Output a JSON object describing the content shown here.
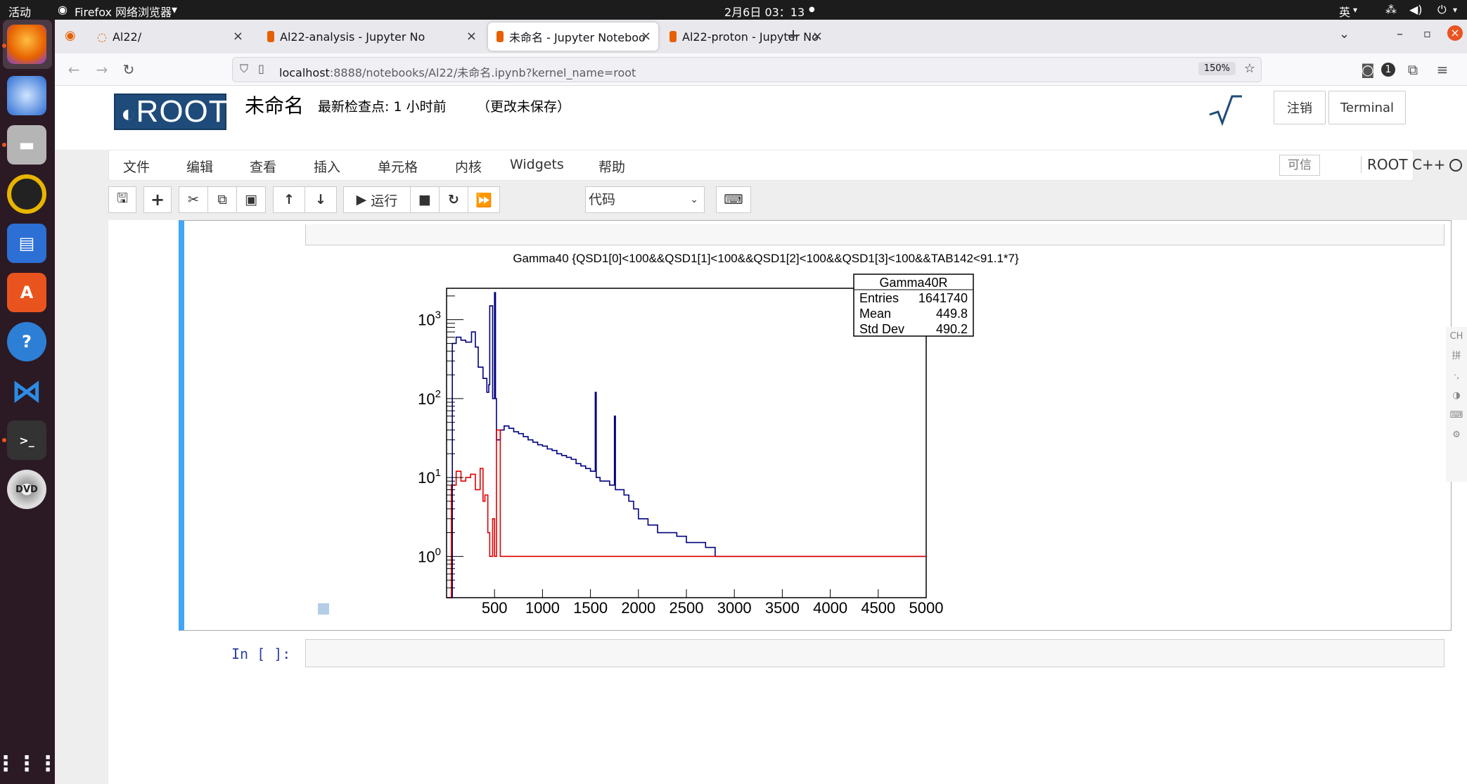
{
  "topbar": {
    "activities": "活动",
    "app_menu": "Firefox 网络浏览器",
    "clock": "2月6日  03：13",
    "input_method": "英"
  },
  "tabs": [
    {
      "label": "Al22/",
      "active": false
    },
    {
      "label": "Al22-analysis - Jupyter No",
      "active": false
    },
    {
      "label": "未命名 - Jupyter Noteboo",
      "active": true
    },
    {
      "label": "Al22-proton - Jupyter No",
      "active": false
    }
  ],
  "navbar": {
    "url_host": "localhost",
    "url_path": ":8888/notebooks/Al22/未命名.ipynb?kernel_name=root",
    "zoom": "150%"
  },
  "jupyter": {
    "logo_text": "ROOT",
    "notebook_title": "未命名",
    "checkpoint": "最新检查点: 1 小时前",
    "unsaved": "（更改未保存）",
    "logout": "注销",
    "terminal": "Terminal",
    "menus": [
      "文件",
      "编辑",
      "查看",
      "插入",
      "单元格",
      "内核",
      "Widgets",
      "帮助"
    ],
    "trusted": "可信",
    "kernel": "ROOT C++",
    "toolbar": {
      "run_label": "运行",
      "cell_type": "代码"
    },
    "next_prompt": "In [ ]:"
  },
  "chart_data": {
    "type": "histogram",
    "title": "Gamma40 {QSD1[0]<100&&QSD1[1]<100&&QSD1[2]<100&&QSD1[3]<100&&TAB142<91.1*7}",
    "xlim": [
      0,
      5000
    ],
    "ylim_log": [
      0.3,
      2500
    ],
    "y_scale": "log",
    "x_ticks": [
      "500",
      "1000",
      "1500",
      "2000",
      "2500",
      "3000",
      "3500",
      "4000",
      "4500",
      "5000"
    ],
    "y_tick_labels": [
      {
        "base": "10",
        "exp": "3",
        "value": 1000
      },
      {
        "base": "10",
        "exp": "2",
        "value": 100
      },
      {
        "base": "10",
        "exp": "1",
        "value": 10
      },
      {
        "base": "10",
        "exp": "0",
        "value": 1
      }
    ],
    "stats_box": {
      "name": "Gamma40R",
      "rows": [
        {
          "label": "Entries",
          "value": "1641740"
        },
        {
          "label": "Mean",
          "value": "449.8"
        },
        {
          "label": "Std Dev",
          "value": "490.2"
        }
      ]
    },
    "series": [
      {
        "color": "#000080",
        "points": [
          [
            0,
            0.3
          ],
          [
            60,
            500
          ],
          [
            100,
            600
          ],
          [
            150,
            550
          ],
          [
            200,
            520
          ],
          [
            260,
            700
          ],
          [
            300,
            450
          ],
          [
            330,
            250
          ],
          [
            380,
            180
          ],
          [
            420,
            120
          ],
          [
            440,
            150
          ],
          [
            450,
            1500
          ],
          [
            480,
            100
          ],
          [
            500,
            2200
          ],
          [
            510,
            100
          ],
          [
            520,
            30
          ],
          [
            560,
            40
          ],
          [
            600,
            45
          ],
          [
            650,
            42
          ],
          [
            700,
            38
          ],
          [
            750,
            36
          ],
          [
            800,
            33
          ],
          [
            850,
            30
          ],
          [
            900,
            28
          ],
          [
            950,
            26
          ],
          [
            1000,
            25
          ],
          [
            1050,
            23
          ],
          [
            1100,
            22
          ],
          [
            1150,
            20
          ],
          [
            1200,
            19
          ],
          [
            1250,
            18
          ],
          [
            1300,
            17
          ],
          [
            1350,
            15
          ],
          [
            1400,
            14
          ],
          [
            1450,
            13
          ],
          [
            1500,
            12
          ],
          [
            1550,
            120
          ],
          [
            1560,
            10
          ],
          [
            1600,
            9
          ],
          [
            1700,
            8
          ],
          [
            1750,
            60
          ],
          [
            1760,
            7
          ],
          [
            1850,
            6
          ],
          [
            1900,
            5
          ],
          [
            1950,
            4
          ],
          [
            2000,
            3
          ],
          [
            2100,
            2.5
          ],
          [
            2200,
            2
          ],
          [
            2300,
            2
          ],
          [
            2400,
            1.8
          ],
          [
            2500,
            1.5
          ],
          [
            2600,
            1.5
          ],
          [
            2700,
            1.3
          ],
          [
            2800,
            1
          ],
          [
            2900,
            1
          ],
          [
            3000,
            1
          ],
          [
            3200,
            1
          ],
          [
            3500,
            1
          ],
          [
            4000,
            1
          ],
          [
            4500,
            1
          ],
          [
            4990,
            1
          ]
        ]
      },
      {
        "color": "#e00000",
        "points": [
          [
            0,
            0.3
          ],
          [
            50,
            8
          ],
          [
            100,
            12
          ],
          [
            150,
            9
          ],
          [
            200,
            10
          ],
          [
            250,
            11
          ],
          [
            300,
            7
          ],
          [
            350,
            13
          ],
          [
            380,
            5
          ],
          [
            400,
            6
          ],
          [
            430,
            2
          ],
          [
            450,
            1
          ],
          [
            480,
            3
          ],
          [
            500,
            1
          ],
          [
            520,
            40
          ],
          [
            560,
            1
          ],
          [
            600,
            1
          ],
          [
            700,
            1
          ],
          [
            900,
            1
          ],
          [
            1100,
            1
          ],
          [
            1300,
            1
          ],
          [
            1500,
            1
          ],
          [
            1800,
            1
          ],
          [
            2100,
            1
          ],
          [
            2300,
            1
          ],
          [
            2600,
            1
          ],
          [
            3100,
            1
          ],
          [
            3600,
            1
          ],
          [
            4000,
            1
          ]
        ]
      }
    ]
  }
}
